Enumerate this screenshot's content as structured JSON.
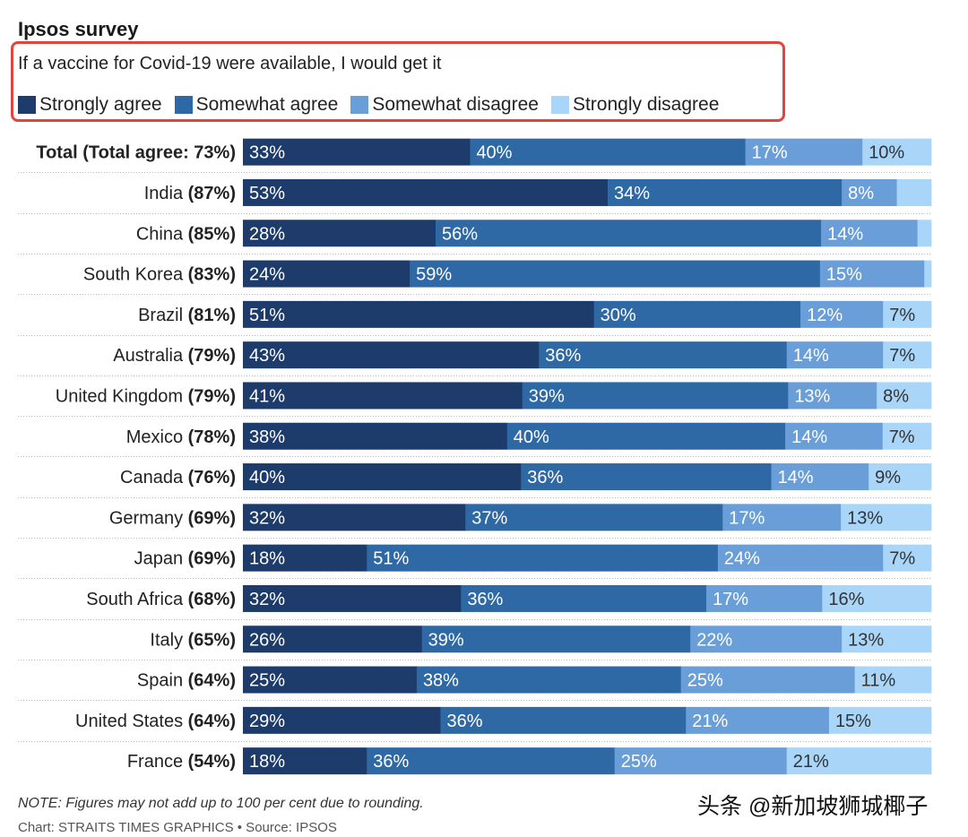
{
  "header": {
    "title": "Ipsos survey",
    "question": "If a vaccine for Covid-19 were available, I would get it"
  },
  "legend": [
    {
      "label": "Strongly agree",
      "color": "#1d3c6c"
    },
    {
      "label": "Somewhat agree",
      "color": "#2f69a5"
    },
    {
      "label": "Somewhat disagree",
      "color": "#6a9ed8"
    },
    {
      "label": "Strongly disagree",
      "color": "#a8d5f8"
    }
  ],
  "footer": {
    "note": "NOTE: Figures may not add up to 100 per cent due to rounding.",
    "source": "Chart: STRAITS TIMES GRAPHICS • Source: IPSOS",
    "watermark": "头条 @新加坡狮城椰子"
  },
  "chart_data": {
    "type": "bar",
    "orientation": "horizontal",
    "stacked": true,
    "title": "If a vaccine for Covid-19 were available, I would get it",
    "categories": [
      "Total",
      "India",
      "China",
      "South Korea",
      "Brazil",
      "Australia",
      "United Kingdom",
      "Mexico",
      "Canada",
      "Germany",
      "Japan",
      "South Africa",
      "Italy",
      "Spain",
      "United States",
      "France"
    ],
    "category_labels": [
      {
        "name": "Total (Total agree: 73%)",
        "pct": "",
        "bold_all": true
      },
      {
        "name": "India",
        "pct": "(87%)"
      },
      {
        "name": "China",
        "pct": "(85%)"
      },
      {
        "name": "South Korea",
        "pct": "(83%)"
      },
      {
        "name": "Brazil",
        "pct": "(81%)"
      },
      {
        "name": "Australia",
        "pct": "(79%)"
      },
      {
        "name": "United Kingdom",
        "pct": "(79%)"
      },
      {
        "name": "Mexico",
        "pct": "(78%)"
      },
      {
        "name": "Canada",
        "pct": "(76%)"
      },
      {
        "name": "Germany",
        "pct": "(69%)"
      },
      {
        "name": "Japan",
        "pct": "(69%)"
      },
      {
        "name": "South Africa",
        "pct": "(68%)"
      },
      {
        "name": "Italy",
        "pct": "(65%)"
      },
      {
        "name": "Spain",
        "pct": "(64%)"
      },
      {
        "name": "United States",
        "pct": "(64%)"
      },
      {
        "name": "France",
        "pct": "(54%)"
      }
    ],
    "series": [
      {
        "name": "Strongly agree",
        "values": [
          33,
          53,
          28,
          24,
          51,
          43,
          41,
          38,
          40,
          32,
          18,
          32,
          26,
          25,
          29,
          18
        ]
      },
      {
        "name": "Somewhat agree",
        "values": [
          40,
          34,
          56,
          59,
          30,
          36,
          39,
          40,
          36,
          37,
          51,
          36,
          39,
          38,
          36,
          36
        ]
      },
      {
        "name": "Somewhat disagree",
        "values": [
          17,
          8,
          14,
          15,
          12,
          14,
          13,
          14,
          14,
          17,
          24,
          17,
          22,
          25,
          21,
          25
        ]
      },
      {
        "name": "Strongly disagree",
        "values": [
          10,
          5,
          2,
          1,
          7,
          7,
          8,
          7,
          9,
          13,
          7,
          16,
          13,
          11,
          15,
          21
        ]
      }
    ],
    "data_labels": [
      [
        "33%",
        "40%",
        "17%",
        "10%"
      ],
      [
        "53%",
        "34%",
        "8%",
        ""
      ],
      [
        "28%",
        "56%",
        "14%",
        ""
      ],
      [
        "24%",
        "59%",
        "15%",
        ""
      ],
      [
        "51%",
        "30%",
        "12%",
        "7%"
      ],
      [
        "43%",
        "36%",
        "14%",
        "7%"
      ],
      [
        "41%",
        "39%",
        "13%",
        "8%"
      ],
      [
        "38%",
        "40%",
        "14%",
        "7%"
      ],
      [
        "40%",
        "36%",
        "14%",
        "9%"
      ],
      [
        "32%",
        "37%",
        "17%",
        "13%"
      ],
      [
        "18%",
        "51%",
        "24%",
        "7%"
      ],
      [
        "32%",
        "36%",
        "17%",
        "16%"
      ],
      [
        "26%",
        "39%",
        "22%",
        "13%"
      ],
      [
        "25%",
        "38%",
        "25%",
        "11%"
      ],
      [
        "29%",
        "36%",
        "21%",
        "15%"
      ],
      [
        "18%",
        "36%",
        "25%",
        "21%"
      ]
    ],
    "xlim": [
      0,
      100
    ],
    "xlabel": "",
    "ylabel": ""
  }
}
